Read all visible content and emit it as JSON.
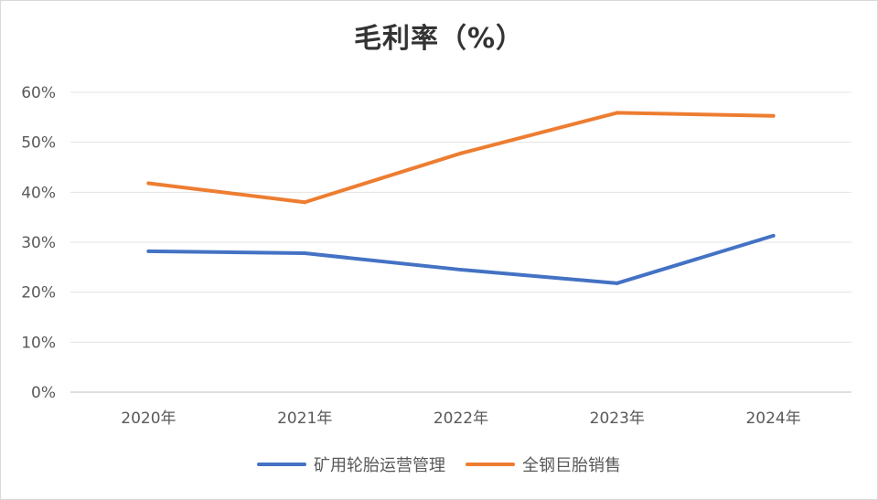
{
  "chart_data": {
    "type": "line",
    "title": "毛利率（%）",
    "categories": [
      "2020年",
      "2021年",
      "2022年",
      "2023年",
      "2024年"
    ],
    "ylim": [
      0,
      60
    ],
    "yticks": [
      0,
      10,
      20,
      30,
      40,
      50,
      60
    ],
    "ytick_labels": [
      "0%",
      "10%",
      "20%",
      "30%",
      "40%",
      "50%",
      "60%"
    ],
    "grid": true,
    "legend_position": "bottom",
    "series": [
      {
        "name": "矿用轮胎运营管理",
        "color": "#4472C4",
        "values": [
          28.2,
          27.8,
          24.5,
          21.8,
          31.3
        ]
      },
      {
        "name": "全钢巨胎销售",
        "color": "#ED7D31",
        "values": [
          41.8,
          38.0,
          47.8,
          55.9,
          55.3
        ]
      }
    ]
  }
}
